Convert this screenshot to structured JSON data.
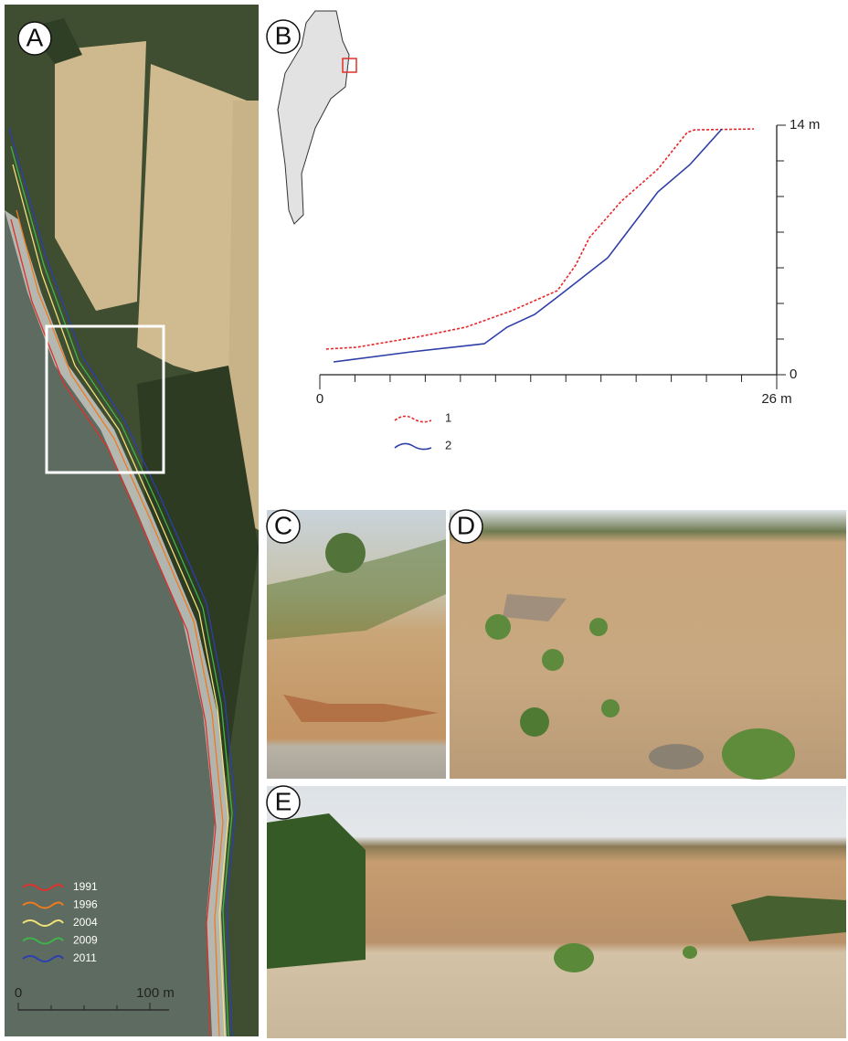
{
  "panels": [
    "A",
    "B",
    "C",
    "D",
    "E"
  ],
  "map_legend": [
    {
      "year": "1991",
      "color": "#e0302a"
    },
    {
      "year": "1996",
      "color": "#f07a1e"
    },
    {
      "year": "2004",
      "color": "#f2e27a"
    },
    {
      "year": "2009",
      "color": "#3fb44a"
    },
    {
      "year": "2011",
      "color": "#2a3fb0"
    }
  ],
  "scale_bar": {
    "start": "0",
    "end": "100 m"
  },
  "chart_data": {
    "type": "line",
    "series": [
      {
        "name": "1",
        "color": "#e8262a",
        "style": "dotted",
        "x": [
          0.36,
          2.08,
          5.72,
          8.32,
          10.92,
          13.52,
          14.56,
          15.34,
          17.16,
          19.24,
          20.9,
          21.32,
          24.7
        ],
        "values": [
          1.44,
          1.54,
          2.15,
          2.67,
          3.59,
          4.72,
          6.15,
          7.69,
          9.74,
          11.54,
          13.59,
          13.74,
          13.79
        ]
      },
      {
        "name": "2",
        "color": "#2e3ea6",
        "style": "solid",
        "x": [
          0.78,
          5.2,
          9.36,
          10.66,
          12.22,
          13.52,
          16.38,
          19.24,
          21.06,
          22.88
        ],
        "values": [
          0.72,
          1.28,
          1.74,
          2.67,
          3.38,
          4.36,
          6.56,
          10.26,
          11.79,
          13.79
        ]
      }
    ],
    "xlim": [
      0,
      26
    ],
    "ylim": [
      0,
      14
    ],
    "xticks": [
      0,
      {
        "value": 26,
        "label": "26 m"
      }
    ],
    "yticks": [
      0,
      {
        "value": 14,
        "label": "14 m"
      }
    ],
    "xminorticks": [
      2,
      4,
      6,
      8,
      10,
      12,
      14,
      16,
      18,
      20,
      22,
      24
    ],
    "yminorticks": [
      2,
      4,
      6,
      8,
      10,
      12
    ]
  }
}
